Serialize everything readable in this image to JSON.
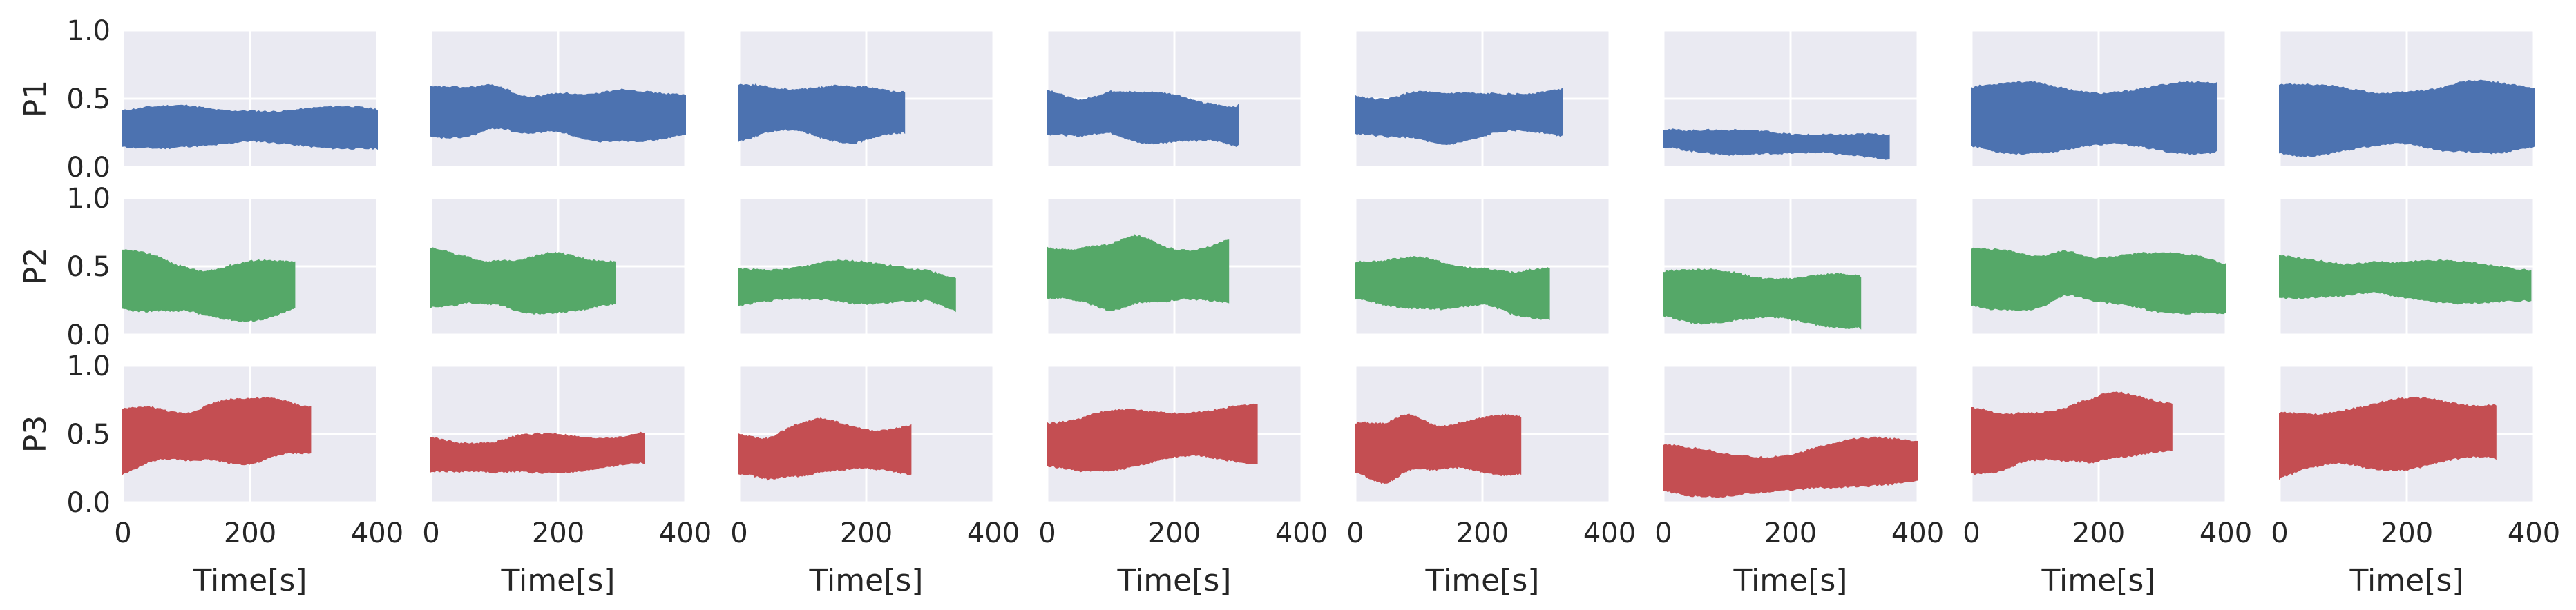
{
  "chart_data": {
    "type": "area",
    "layout": {
      "rows": 3,
      "cols": 8
    },
    "grid": true,
    "background": "#EAEAF2",
    "row_labels": [
      "P1",
      "P2",
      "P3"
    ],
    "row_colors": [
      "#4C72B0",
      "#55A868",
      "#C44E52"
    ],
    "xlabel": "Time[s]",
    "xlim": [
      0,
      400
    ],
    "xticks": [
      0,
      200,
      400
    ],
    "ylim": [
      0,
      1
    ],
    "yticks": [
      0.0,
      0.5,
      1.0
    ],
    "ytick_labels": [
      "0.0",
      "0.5",
      "1.0"
    ],
    "xtick_labels": [
      "0",
      "200",
      "400"
    ],
    "panels": [
      [
        {
          "x_end": 400,
          "center": [
            0.28,
            0.29,
            0.3,
            0.29,
            0.3,
            0.29,
            0.29,
            0.29,
            0.28
          ],
          "half_width": 0.14
        },
        {
          "x_end": 400,
          "center": [
            0.4,
            0.4,
            0.44,
            0.38,
            0.4,
            0.36,
            0.38,
            0.37,
            0.38
          ],
          "half_width": 0.17
        },
        {
          "x_end": 260,
          "center": [
            0.4,
            0.42,
            0.42,
            0.4,
            0.38,
            0.4,
            0.4
          ],
          "half_width": 0.19
        },
        {
          "x_end": 300,
          "center": [
            0.4,
            0.36,
            0.4,
            0.36,
            0.36,
            0.33,
            0.3
          ],
          "half_width": 0.17
        },
        {
          "x_end": 325,
          "center": [
            0.38,
            0.36,
            0.38,
            0.35,
            0.37,
            0.4,
            0.4,
            0.4
          ],
          "half_width": 0.17
        },
        {
          "x_end": 355,
          "center": [
            0.21,
            0.19,
            0.18,
            0.18,
            0.17,
            0.17,
            0.16,
            0.15
          ],
          "half_width": 0.08
        },
        {
          "x_end": 385,
          "center": [
            0.37,
            0.36,
            0.36,
            0.35,
            0.35,
            0.36,
            0.36,
            0.36,
            0.36
          ],
          "half_width": 0.24
        },
        {
          "x_end": 400,
          "center": [
            0.35,
            0.34,
            0.35,
            0.35,
            0.36,
            0.35,
            0.37,
            0.36,
            0.36
          ],
          "half_width": 0.24
        }
      ],
      [
        {
          "x_end": 270,
          "center": [
            0.4,
            0.38,
            0.34,
            0.3,
            0.31,
            0.33,
            0.36
          ],
          "half_width": 0.2
        },
        {
          "x_end": 290,
          "center": [
            0.42,
            0.4,
            0.38,
            0.36,
            0.38,
            0.37,
            0.38
          ],
          "half_width": 0.2
        },
        {
          "x_end": 340,
          "center": [
            0.35,
            0.36,
            0.38,
            0.4,
            0.38,
            0.37,
            0.36,
            0.3
          ],
          "half_width": 0.14
        },
        {
          "x_end": 285,
          "center": [
            0.45,
            0.44,
            0.42,
            0.48,
            0.44,
            0.44,
            0.46
          ],
          "half_width": 0.23
        },
        {
          "x_end": 305,
          "center": [
            0.4,
            0.38,
            0.38,
            0.35,
            0.35,
            0.3,
            0.3
          ],
          "half_width": 0.17
        },
        {
          "x_end": 310,
          "center": [
            0.3,
            0.28,
            0.28,
            0.27,
            0.26,
            0.25,
            0.24
          ],
          "half_width": 0.18
        },
        {
          "x_end": 400,
          "center": [
            0.42,
            0.4,
            0.38,
            0.45,
            0.4,
            0.4,
            0.38,
            0.37,
            0.34
          ],
          "half_width": 0.2
        },
        {
          "x_end": 395,
          "center": [
            0.42,
            0.41,
            0.4,
            0.42,
            0.4,
            0.39,
            0.38,
            0.37,
            0.36
          ],
          "half_width": 0.14
        }
      ],
      [
        {
          "x_end": 295,
          "center": [
            0.45,
            0.5,
            0.48,
            0.52,
            0.52,
            0.55,
            0.53
          ],
          "half_width": 0.22
        },
        {
          "x_end": 335,
          "center": [
            0.35,
            0.33,
            0.33,
            0.36,
            0.36,
            0.35,
            0.37,
            0.4
          ],
          "half_width": 0.13
        },
        {
          "x_end": 270,
          "center": [
            0.35,
            0.32,
            0.38,
            0.42,
            0.4,
            0.38,
            0.38
          ],
          "half_width": 0.18
        },
        {
          "x_end": 330,
          "center": [
            0.42,
            0.42,
            0.45,
            0.47,
            0.49,
            0.5,
            0.5,
            0.5
          ],
          "half_width": 0.2
        },
        {
          "x_end": 260,
          "center": [
            0.4,
            0.36,
            0.44,
            0.4,
            0.42,
            0.42,
            0.42
          ],
          "half_width": 0.2
        },
        {
          "x_end": 400,
          "center": [
            0.25,
            0.22,
            0.2,
            0.2,
            0.22,
            0.26,
            0.29,
            0.3,
            0.3
          ],
          "half_width": 0.16
        },
        {
          "x_end": 315,
          "center": [
            0.45,
            0.44,
            0.48,
            0.49,
            0.52,
            0.57,
            0.56,
            0.55
          ],
          "half_width": 0.22
        },
        {
          "x_end": 340,
          "center": [
            0.42,
            0.45,
            0.48,
            0.48,
            0.5,
            0.52,
            0.52,
            0.52
          ],
          "half_width": 0.24
        }
      ]
    ]
  }
}
